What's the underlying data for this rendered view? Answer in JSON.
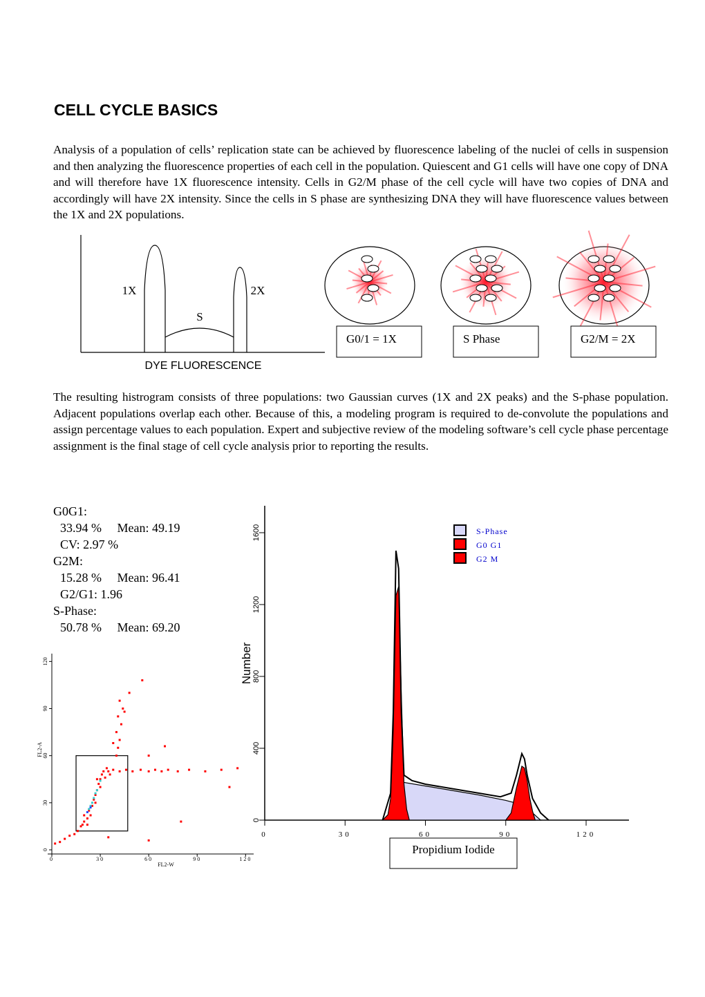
{
  "title": "CELL CYCLE BASICS",
  "paragraphs": [
    "Analysis of a population of cells’ replication state can be achieved by fluorescence labeling of the nuclei of cells in suspension and then analyzing the fluorescence properties of each cell in the population.  Quiescent and G1 cells will have one copy of DNA and will therefore have 1X fluorescence intensity.  Cells in G2/M phase of the cell cycle will have two copies of DNA and accordingly will have 2X intensity.  Since the cells in S phase are synthesizing DNA they will have fluorescence values between the 1X and 2X populations.",
    "The resulting histrogram consists of three populations: two Gaussian curves (1X and 2X peaks) and the S-phase population.  Adjacent populations overlap each other.  Because of this, a modeling program is required to de-convolute the populations and assign percentage values to each population.  Expert and subjective review of the modeling software’s cell cycle phase percentage assignment is the final stage of cell cycle analysis prior to reporting the results."
  ],
  "schematic": {
    "peak_1x": "1X",
    "peak_2x": "2X",
    "s_phase": "S",
    "axis_label": "DYE FLUORESCENCE"
  },
  "cells": [
    {
      "label": "G0/1 = 1X"
    },
    {
      "label": "S Phase"
    },
    {
      "label": "G2/M = 2X"
    }
  ],
  "stats": [
    "G0G1:",
    "33.94 %     Mean: 49.19",
    "CV: 2.97 %",
    "G2M:",
    "15.28 %     Mean: 96.41",
    "G2/G1: 1.96",
    "S-Phase:",
    "50.78 %     Mean: 69.20"
  ],
  "histogram": {
    "type": "area",
    "xlabel": "Propidium Iodide",
    "ylabel": "Number",
    "xlim": [
      0,
      136
    ],
    "ylim": [
      0,
      1750
    ],
    "xticks": [
      0,
      30,
      60,
      90,
      120
    ],
    "yticks": [
      0,
      400,
      800,
      1200,
      1600
    ],
    "series": [
      {
        "name": "S-Phase",
        "color": "#d8d8f8",
        "x": [
          47,
          50,
          52,
          60,
          70,
          80,
          90,
          95,
          100,
          103
        ],
        "values": [
          0,
          100,
          210,
          190,
          165,
          140,
          110,
          90,
          40,
          0
        ]
      },
      {
        "name": "G0 G1",
        "color": "#ff0000",
        "x": [
          44,
          46,
          47,
          48,
          49,
          50,
          51,
          52,
          53,
          54
        ],
        "values": [
          0,
          30,
          120,
          500,
          1250,
          1300,
          700,
          200,
          60,
          0
        ]
      },
      {
        "name": "G2 M",
        "color": "#ff0000",
        "x": [
          90,
          92,
          94,
          96,
          97,
          98,
          99,
          100,
          101
        ],
        "values": [
          0,
          40,
          180,
          300,
          290,
          220,
          120,
          50,
          0
        ]
      },
      {
        "color": "#000000",
        "x": [
          44,
          47,
          48,
          49,
          50,
          51,
          52,
          55,
          60,
          70,
          80,
          88,
          92,
          94,
          96,
          97,
          98,
          100,
          103,
          106
        ],
        "values": [
          0,
          150,
          600,
          1500,
          1400,
          600,
          250,
          220,
          200,
          175,
          150,
          130,
          150,
          250,
          370,
          340,
          250,
          120,
          40,
          0
        ]
      }
    ]
  },
  "scatter": {
    "type": "scatter",
    "xlabel": "FL2-W",
    "ylabel": "FL2-A",
    "xlim": [
      0,
      125
    ],
    "ylim": [
      0,
      125
    ],
    "xticks": [
      0,
      30,
      60,
      90,
      120
    ],
    "yticks": [
      0,
      30,
      60,
      90,
      120
    ],
    "gate": {
      "x": [
        15,
        47
      ],
      "y": [
        12,
        60
      ]
    },
    "series": [
      {
        "color": "#ff0000",
        "x": [
          18,
          20,
          22,
          23,
          25,
          26,
          27,
          28,
          29,
          30,
          31,
          32,
          20,
          24,
          27,
          30,
          33,
          35,
          16,
          19,
          34,
          36,
          22,
          28,
          38,
          42,
          46,
          50,
          55,
          60,
          64,
          68,
          72,
          78,
          85,
          95,
          105,
          115,
          40,
          41,
          42,
          40,
          43,
          41,
          44,
          45,
          42,
          38,
          48,
          56,
          60,
          70,
          2,
          5,
          8,
          11,
          14,
          35,
          60,
          80,
          110
        ],
        "y": [
          15,
          18,
          20,
          25,
          28,
          32,
          35,
          38,
          42,
          45,
          48,
          50,
          22,
          22,
          30,
          40,
          46,
          50,
          12,
          16,
          52,
          48,
          16,
          45,
          51,
          50,
          51,
          50,
          51,
          50,
          51,
          50,
          51,
          50,
          51,
          50,
          51,
          52,
          60,
          65,
          70,
          75,
          80,
          85,
          90,
          88,
          95,
          68,
          100,
          108,
          60,
          66,
          4,
          5,
          7,
          9,
          10,
          8,
          6,
          18,
          40
        ]
      },
      {
        "color": "#33cccc",
        "x": [
          24,
          26,
          28,
          30,
          27,
          25,
          23
        ],
        "y": [
          28,
          33,
          38,
          44,
          36,
          30,
          26
        ]
      },
      {
        "color": "#2244ff",
        "x": [
          22,
          24
        ],
        "y": [
          24,
          27
        ]
      }
    ]
  }
}
